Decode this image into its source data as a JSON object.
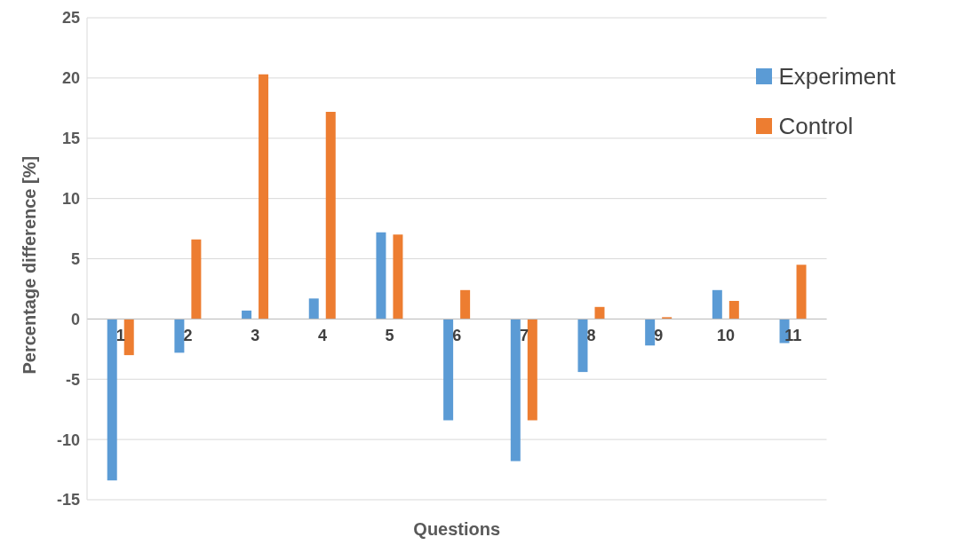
{
  "chart_data": {
    "type": "bar",
    "xlabel": "Questions",
    "ylabel": "Percentage difference [%]",
    "categories": [
      "1",
      "2",
      "3",
      "4",
      "5",
      "6",
      "7",
      "8",
      "9",
      "10",
      "11"
    ],
    "series": [
      {
        "name": "Experiment",
        "color": "#5b9bd5",
        "values": [
          -13.4,
          -2.8,
          0.7,
          1.7,
          7.2,
          -8.4,
          -11.8,
          -4.4,
          -2.2,
          2.4,
          -2.0
        ]
      },
      {
        "name": "Control",
        "color": "#ed7d31",
        "values": [
          -3.0,
          6.6,
          20.3,
          17.2,
          7.0,
          2.4,
          -8.4,
          1.0,
          0.15,
          1.5,
          4.5
        ]
      }
    ],
    "ylim": [
      -15,
      25
    ],
    "yticks": [
      -15,
      -10,
      -5,
      0,
      5,
      10,
      15,
      20,
      25
    ],
    "grid": "y",
    "legend": "top right"
  }
}
